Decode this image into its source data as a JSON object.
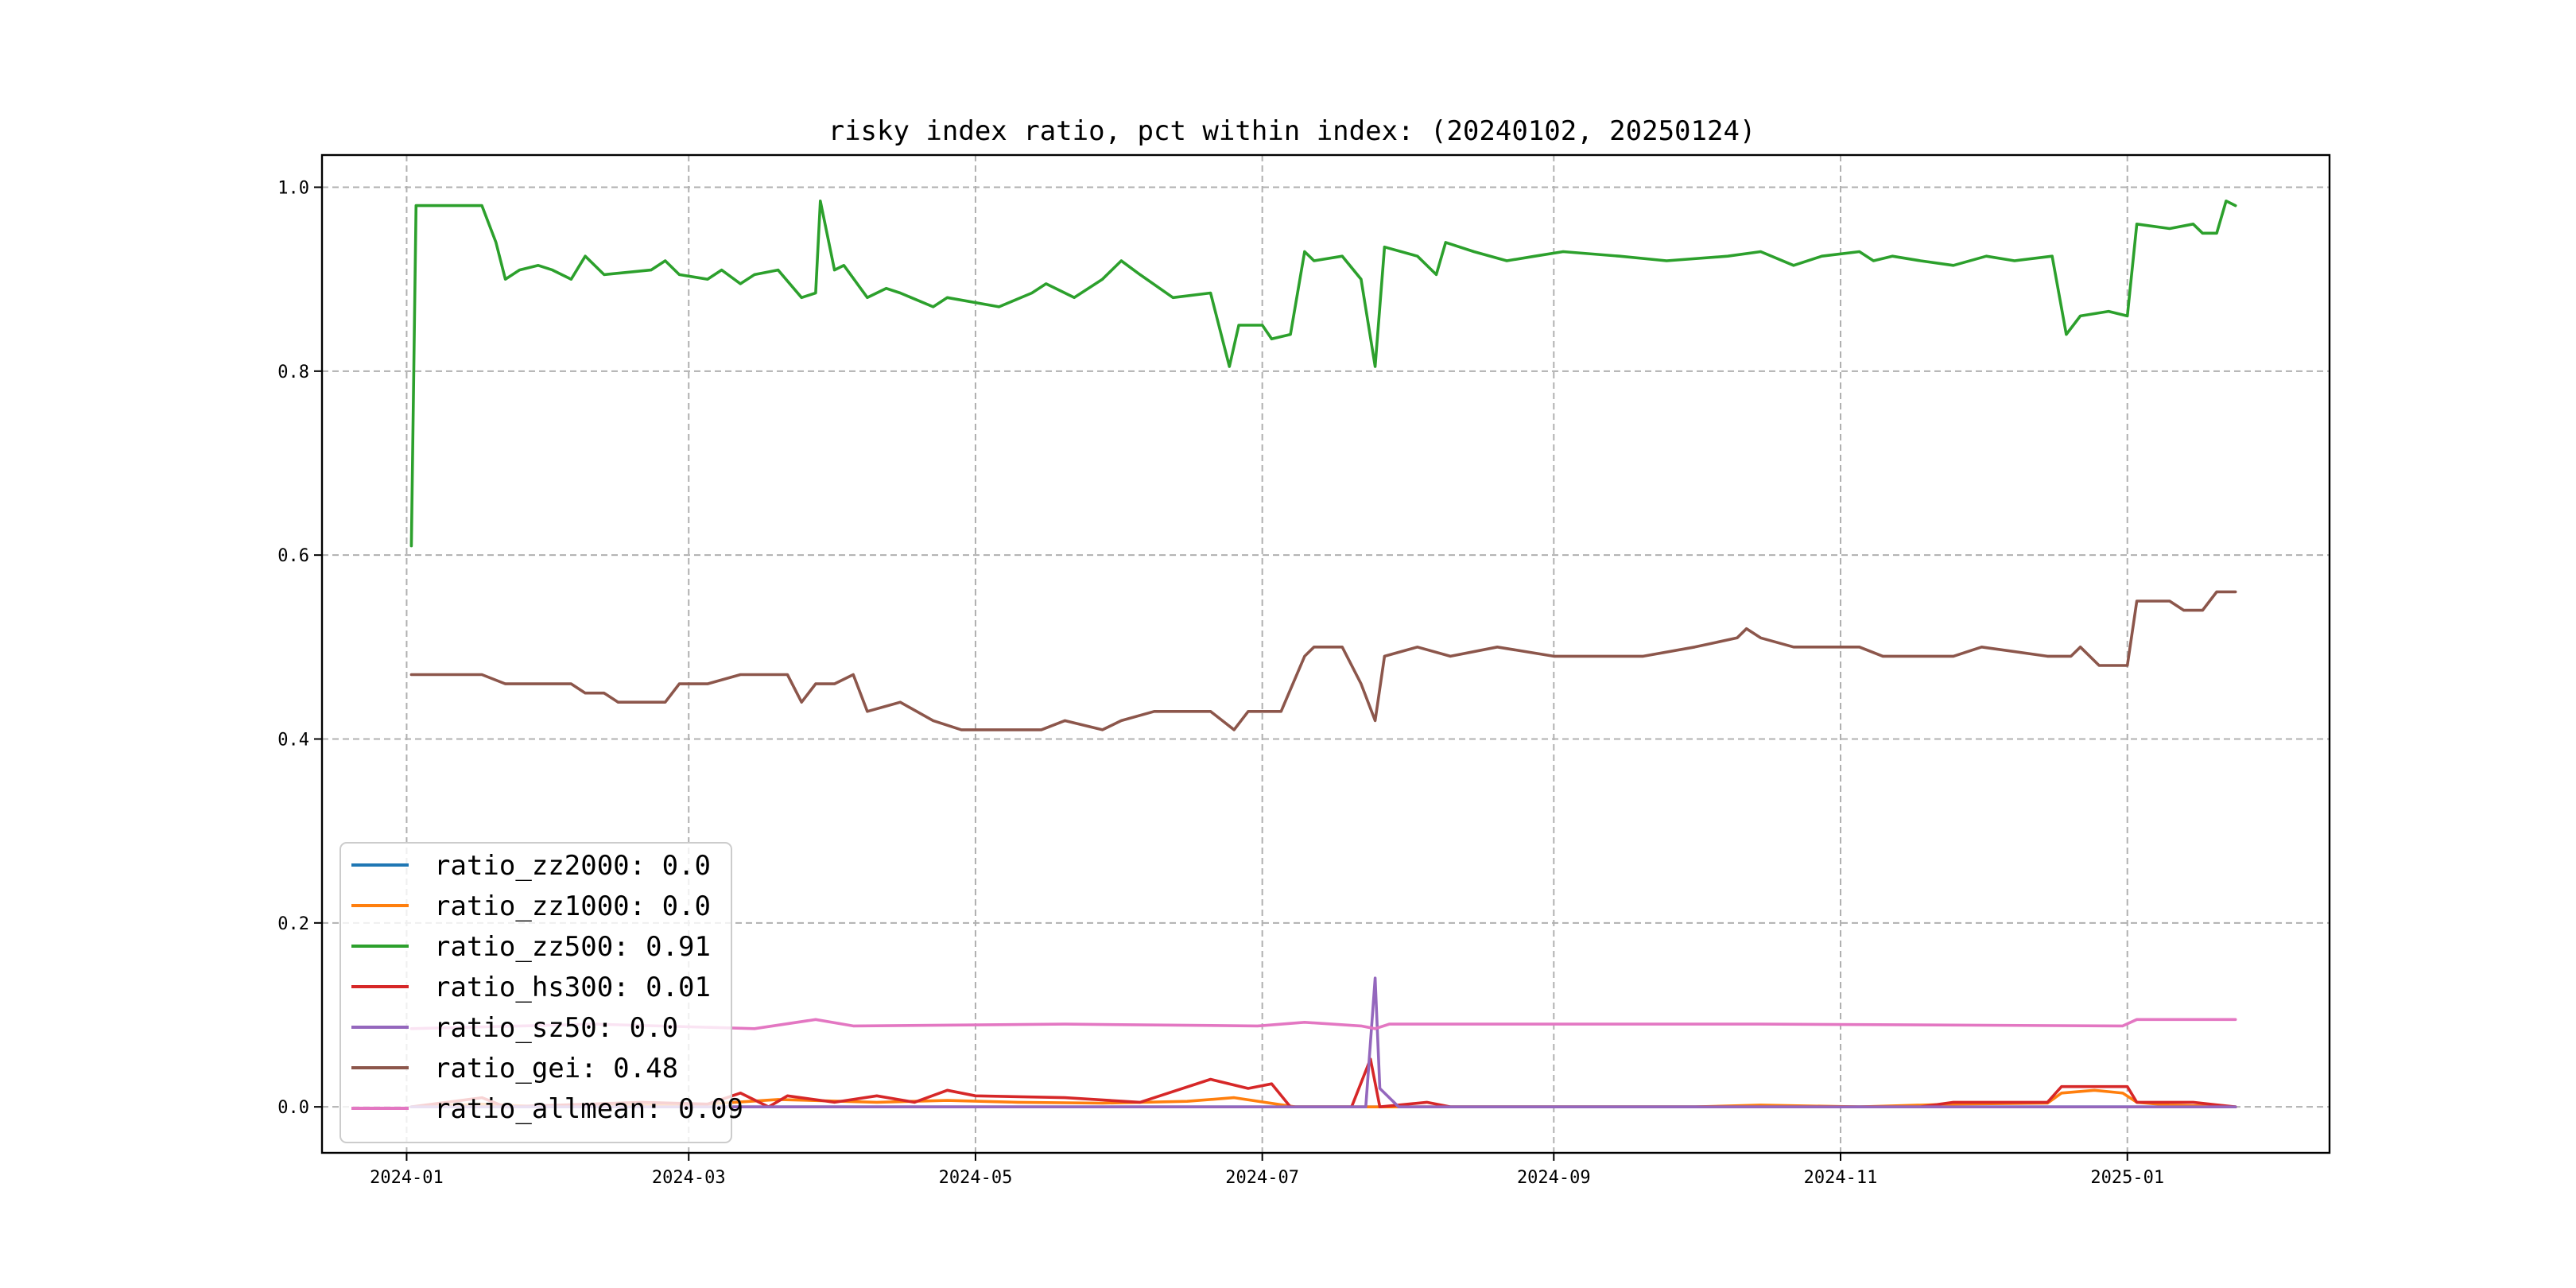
{
  "chart_data": {
    "type": "line",
    "title": "risky index ratio, pct within index: (20240102, 20250124)",
    "xlabel": "",
    "ylabel": "",
    "xlim": [
      "2023-12-14",
      "2025-02-13"
    ],
    "ylim": [
      -0.05,
      1.035
    ],
    "x_ticks": [
      "2024-01",
      "2024-03",
      "2024-05",
      "2024-07",
      "2024-09",
      "2024-11",
      "2025-01"
    ],
    "y_ticks": [
      0.0,
      0.2,
      0.4,
      0.6,
      0.8,
      1.0
    ],
    "y_tick_labels": [
      "0.0",
      "0.2",
      "0.4",
      "0.6",
      "0.8",
      "1.0"
    ],
    "grid": true,
    "legend_position": "lower-left",
    "series": [
      {
        "name": "ratio_zz2000: 0.0",
        "color": "#1f77b4",
        "points": [
          [
            "2024-01-02",
            0.0
          ],
          [
            "2025-01-24",
            0.0
          ]
        ]
      },
      {
        "name": "ratio_zz1000: 0.0",
        "color": "#ff7f0e",
        "points": [
          [
            "2024-01-02",
            0.0
          ],
          [
            "2024-01-17",
            0.003
          ],
          [
            "2024-01-30",
            0.0
          ],
          [
            "2024-02-20",
            0.002
          ],
          [
            "2024-03-05",
            0.003
          ],
          [
            "2024-03-20",
            0.008
          ],
          [
            "2024-04-10",
            0.005
          ],
          [
            "2024-04-25",
            0.007
          ],
          [
            "2024-05-10",
            0.005
          ],
          [
            "2024-05-28",
            0.004
          ],
          [
            "2024-06-15",
            0.006
          ],
          [
            "2024-06-25",
            0.01
          ],
          [
            "2024-07-08",
            0.0
          ],
          [
            "2024-07-25",
            0.0
          ],
          [
            "2024-10-01",
            0.0
          ],
          [
            "2024-10-15",
            0.002
          ],
          [
            "2024-11-05",
            0.0
          ],
          [
            "2024-11-25",
            0.003
          ],
          [
            "2024-12-15",
            0.004
          ],
          [
            "2024-12-18",
            0.015
          ],
          [
            "2024-12-25",
            0.018
          ],
          [
            "2024-12-31",
            0.015
          ],
          [
            "2025-01-03",
            0.005
          ],
          [
            "2025-01-10",
            0.002
          ],
          [
            "2025-01-24",
            0.0
          ]
        ]
      },
      {
        "name": "ratio_zz500: 0.91",
        "color": "#2ca02c",
        "points": [
          [
            "2024-01-02",
            0.61
          ],
          [
            "2024-01-03",
            0.98
          ],
          [
            "2024-01-17",
            0.98
          ],
          [
            "2024-01-20",
            0.94
          ],
          [
            "2024-01-22",
            0.9
          ],
          [
            "2024-01-25",
            0.91
          ],
          [
            "2024-01-29",
            0.915
          ],
          [
            "2024-02-01",
            0.91
          ],
          [
            "2024-02-05",
            0.9
          ],
          [
            "2024-02-08",
            0.925
          ],
          [
            "2024-02-12",
            0.905
          ],
          [
            "2024-02-22",
            0.91
          ],
          [
            "2024-02-25",
            0.92
          ],
          [
            "2024-02-28",
            0.905
          ],
          [
            "2024-03-05",
            0.9
          ],
          [
            "2024-03-08",
            0.91
          ],
          [
            "2024-03-12",
            0.895
          ],
          [
            "2024-03-15",
            0.905
          ],
          [
            "2024-03-20",
            0.91
          ],
          [
            "2024-03-25",
            0.88
          ],
          [
            "2024-03-28",
            0.885
          ],
          [
            "2024-03-29",
            0.985
          ],
          [
            "2024-04-01",
            0.91
          ],
          [
            "2024-04-03",
            0.915
          ],
          [
            "2024-04-08",
            0.88
          ],
          [
            "2024-04-12",
            0.89
          ],
          [
            "2024-04-15",
            0.885
          ],
          [
            "2024-04-22",
            0.87
          ],
          [
            "2024-04-25",
            0.88
          ],
          [
            "2024-05-06",
            0.87
          ],
          [
            "2024-05-13",
            0.885
          ],
          [
            "2024-05-16",
            0.895
          ],
          [
            "2024-05-22",
            0.88
          ],
          [
            "2024-05-28",
            0.9
          ],
          [
            "2024-06-01",
            0.92
          ],
          [
            "2024-06-05",
            0.905
          ],
          [
            "2024-06-12",
            0.88
          ],
          [
            "2024-06-20",
            0.885
          ],
          [
            "2024-06-24",
            0.805
          ],
          [
            "2024-06-26",
            0.85
          ],
          [
            "2024-07-01",
            0.85
          ],
          [
            "2024-07-03",
            0.835
          ],
          [
            "2024-07-07",
            0.84
          ],
          [
            "2024-07-10",
            0.93
          ],
          [
            "2024-07-12",
            0.92
          ],
          [
            "2024-07-18",
            0.925
          ],
          [
            "2024-07-22",
            0.9
          ],
          [
            "2024-07-25",
            0.805
          ],
          [
            "2024-07-27",
            0.935
          ],
          [
            "2024-08-03",
            0.925
          ],
          [
            "2024-08-07",
            0.905
          ],
          [
            "2024-08-09",
            0.94
          ],
          [
            "2024-08-15",
            0.93
          ],
          [
            "2024-08-22",
            0.92
          ],
          [
            "2024-08-28",
            0.925
          ],
          [
            "2024-09-03",
            0.93
          ],
          [
            "2024-09-15",
            0.925
          ],
          [
            "2024-09-25",
            0.92
          ],
          [
            "2024-10-08",
            0.925
          ],
          [
            "2024-10-15",
            0.93
          ],
          [
            "2024-10-22",
            0.915
          ],
          [
            "2024-10-28",
            0.925
          ],
          [
            "2024-11-05",
            0.93
          ],
          [
            "2024-11-08",
            0.92
          ],
          [
            "2024-11-12",
            0.925
          ],
          [
            "2024-11-18",
            0.92
          ],
          [
            "2024-11-25",
            0.915
          ],
          [
            "2024-12-02",
            0.925
          ],
          [
            "2024-12-08",
            0.92
          ],
          [
            "2024-12-16",
            0.925
          ],
          [
            "2024-12-19",
            0.84
          ],
          [
            "2024-12-22",
            0.86
          ],
          [
            "2024-12-28",
            0.865
          ],
          [
            "2025-01-01",
            0.86
          ],
          [
            "2025-01-03",
            0.96
          ],
          [
            "2025-01-10",
            0.955
          ],
          [
            "2025-01-15",
            0.96
          ],
          [
            "2025-01-17",
            0.95
          ],
          [
            "2025-01-20",
            0.95
          ],
          [
            "2025-01-22",
            0.985
          ],
          [
            "2025-01-24",
            0.98
          ]
        ]
      },
      {
        "name": "ratio_hs300: 0.01",
        "color": "#d62728",
        "points": [
          [
            "2024-01-02",
            0.0
          ],
          [
            "2024-01-17",
            0.01
          ],
          [
            "2024-01-22",
            0.0
          ],
          [
            "2024-02-20",
            0.005
          ],
          [
            "2024-03-05",
            0.003
          ],
          [
            "2024-03-12",
            0.015
          ],
          [
            "2024-03-18",
            0.0
          ],
          [
            "2024-03-22",
            0.012
          ],
          [
            "2024-04-01",
            0.005
          ],
          [
            "2024-04-10",
            0.012
          ],
          [
            "2024-04-18",
            0.005
          ],
          [
            "2024-04-25",
            0.018
          ],
          [
            "2024-05-01",
            0.012
          ],
          [
            "2024-05-20",
            0.01
          ],
          [
            "2024-06-05",
            0.005
          ],
          [
            "2024-06-20",
            0.03
          ],
          [
            "2024-06-28",
            0.02
          ],
          [
            "2024-07-03",
            0.025
          ],
          [
            "2024-07-07",
            0.0
          ],
          [
            "2024-07-20",
            0.0
          ],
          [
            "2024-07-24",
            0.052
          ],
          [
            "2024-07-26",
            0.0
          ],
          [
            "2024-08-05",
            0.005
          ],
          [
            "2024-08-10",
            0.0
          ],
          [
            "2024-11-18",
            0.0
          ],
          [
            "2024-11-25",
            0.005
          ],
          [
            "2024-12-15",
            0.005
          ],
          [
            "2024-12-18",
            0.022
          ],
          [
            "2025-01-01",
            0.022
          ],
          [
            "2025-01-03",
            0.005
          ],
          [
            "2025-01-15",
            0.005
          ],
          [
            "2025-01-24",
            0.0
          ]
        ]
      },
      {
        "name": "ratio_sz50: 0.0",
        "color": "#9467bd",
        "points": [
          [
            "2024-01-02",
            0.0
          ],
          [
            "2024-07-23",
            0.0
          ],
          [
            "2024-07-25",
            0.14
          ],
          [
            "2024-07-26",
            0.02
          ],
          [
            "2024-07-30",
            0.0
          ],
          [
            "2025-01-24",
            0.0
          ]
        ]
      },
      {
        "name": "ratio_gei: 0.48",
        "color": "#8c564b",
        "points": [
          [
            "2024-01-02",
            0.47
          ],
          [
            "2024-01-17",
            0.47
          ],
          [
            "2024-01-22",
            0.46
          ],
          [
            "2024-02-05",
            0.46
          ],
          [
            "2024-02-08",
            0.45
          ],
          [
            "2024-02-12",
            0.45
          ],
          [
            "2024-02-15",
            0.44
          ],
          [
            "2024-02-25",
            0.44
          ],
          [
            "2024-02-28",
            0.46
          ],
          [
            "2024-03-05",
            0.46
          ],
          [
            "2024-03-12",
            0.47
          ],
          [
            "2024-03-22",
            0.47
          ],
          [
            "2024-03-25",
            0.44
          ],
          [
            "2024-03-28",
            0.46
          ],
          [
            "2024-04-01",
            0.46
          ],
          [
            "2024-04-05",
            0.47
          ],
          [
            "2024-04-08",
            0.43
          ],
          [
            "2024-04-15",
            0.44
          ],
          [
            "2024-04-22",
            0.42
          ],
          [
            "2024-04-28",
            0.41
          ],
          [
            "2024-05-06",
            0.41
          ],
          [
            "2024-05-15",
            0.41
          ],
          [
            "2024-05-20",
            0.42
          ],
          [
            "2024-05-28",
            0.41
          ],
          [
            "2024-06-01",
            0.42
          ],
          [
            "2024-06-08",
            0.43
          ],
          [
            "2024-06-20",
            0.43
          ],
          [
            "2024-06-25",
            0.41
          ],
          [
            "2024-06-28",
            0.43
          ],
          [
            "2024-07-05",
            0.43
          ],
          [
            "2024-07-10",
            0.49
          ],
          [
            "2024-07-12",
            0.5
          ],
          [
            "2024-07-18",
            0.5
          ],
          [
            "2024-07-22",
            0.46
          ],
          [
            "2024-07-25",
            0.42
          ],
          [
            "2024-07-27",
            0.49
          ],
          [
            "2024-08-03",
            0.5
          ],
          [
            "2024-08-10",
            0.49
          ],
          [
            "2024-08-20",
            0.5
          ],
          [
            "2024-09-01",
            0.49
          ],
          [
            "2024-09-20",
            0.49
          ],
          [
            "2024-10-01",
            0.5
          ],
          [
            "2024-10-10",
            0.51
          ],
          [
            "2024-10-12",
            0.52
          ],
          [
            "2024-10-15",
            0.51
          ],
          [
            "2024-10-22",
            0.5
          ],
          [
            "2024-11-05",
            0.5
          ],
          [
            "2024-11-10",
            0.49
          ],
          [
            "2024-11-25",
            0.49
          ],
          [
            "2024-12-01",
            0.5
          ],
          [
            "2024-12-15",
            0.49
          ],
          [
            "2024-12-20",
            0.49
          ],
          [
            "2024-12-22",
            0.5
          ],
          [
            "2024-12-26",
            0.48
          ],
          [
            "2025-01-01",
            0.48
          ],
          [
            "2025-01-03",
            0.55
          ],
          [
            "2025-01-10",
            0.55
          ],
          [
            "2025-01-13",
            0.54
          ],
          [
            "2025-01-17",
            0.54
          ],
          [
            "2025-01-20",
            0.56
          ],
          [
            "2025-01-24",
            0.56
          ]
        ]
      },
      {
        "name": "ratio_allmean: 0.09",
        "color": "#e377c2",
        "points": [
          [
            "2024-01-02",
            0.085
          ],
          [
            "2024-02-10",
            0.09
          ],
          [
            "2024-03-15",
            0.085
          ],
          [
            "2024-03-28",
            0.095
          ],
          [
            "2024-04-05",
            0.088
          ],
          [
            "2024-05-20",
            0.09
          ],
          [
            "2024-06-30",
            0.088
          ],
          [
            "2024-07-10",
            0.092
          ],
          [
            "2024-07-22",
            0.088
          ],
          [
            "2024-07-25",
            0.085
          ],
          [
            "2024-07-28",
            0.09
          ],
          [
            "2024-10-15",
            0.09
          ],
          [
            "2024-12-31",
            0.088
          ],
          [
            "2025-01-03",
            0.095
          ],
          [
            "2025-01-24",
            0.095
          ]
        ]
      }
    ]
  }
}
